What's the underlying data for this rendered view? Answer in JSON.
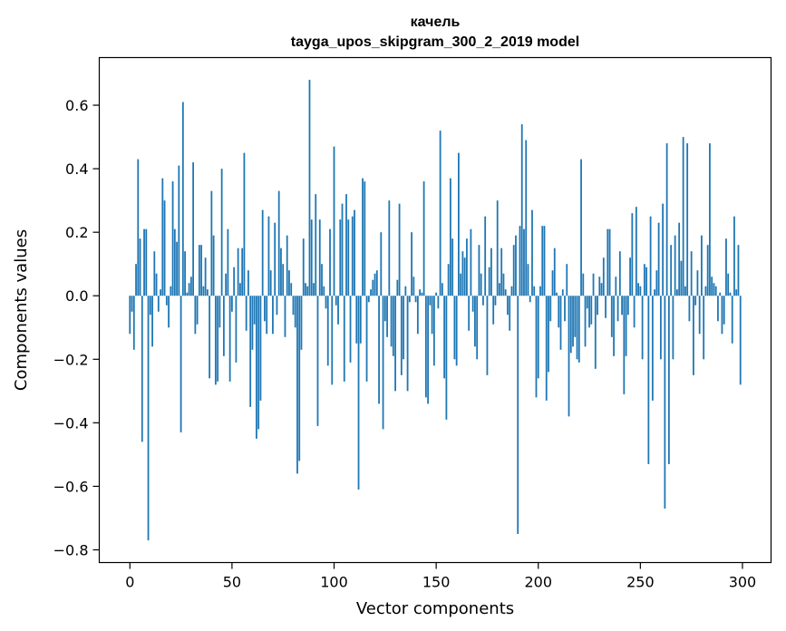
{
  "chart_data": {
    "type": "bar",
    "title": "качель",
    "subtitle": "tayga_upos_skipgram_300_2_2019 model",
    "xlabel": "Vector components",
    "ylabel": "Components values",
    "xlim": [
      -15,
      314
    ],
    "ylim": [
      -0.84,
      0.75
    ],
    "xticks": [
      0,
      50,
      100,
      150,
      200,
      250,
      300
    ],
    "xtick_labels": [
      "0",
      "50",
      "100",
      "150",
      "200",
      "250",
      "300"
    ],
    "yticks": [
      -0.8,
      -0.6,
      -0.4,
      -0.2,
      0.0,
      0.2,
      0.4,
      0.6
    ],
    "ytick_labels": [
      "−0.8",
      "−0.6",
      "−0.4",
      "−0.2",
      "0.0",
      "0.2",
      "0.4",
      "0.6"
    ],
    "grid": false,
    "bar_color": "#1f77b4",
    "series": [
      {
        "values": [
          -0.12,
          -0.05,
          -0.17,
          0.1,
          0.43,
          0.18,
          -0.46,
          0.21,
          0.21,
          -0.77,
          -0.06,
          -0.16,
          0.14,
          0.07,
          -0.05,
          0.02,
          0.37,
          0.3,
          -0.03,
          -0.1,
          0.03,
          0.36,
          0.21,
          0.17,
          0.41,
          -0.43,
          0.61,
          0.14,
          0.01,
          0.04,
          0.06,
          0.42,
          -0.12,
          -0.09,
          0.16,
          0.16,
          0.03,
          0.12,
          0.02,
          -0.26,
          0.33,
          0.19,
          -0.28,
          -0.27,
          -0.1,
          0.4,
          -0.19,
          0.07,
          0.21,
          -0.27,
          -0.05,
          0.09,
          -0.21,
          0.15,
          0.04,
          0.15,
          0.45,
          -0.11,
          0.08,
          -0.35,
          -0.17,
          -0.09,
          -0.45,
          -0.42,
          -0.33,
          0.27,
          -0.08,
          -0.12,
          0.25,
          0.08,
          -0.12,
          0.23,
          -0.06,
          0.33,
          0.15,
          0.1,
          -0.13,
          0.19,
          0.08,
          0.04,
          -0.06,
          -0.1,
          -0.56,
          -0.52,
          -0.17,
          0.18,
          0.04,
          0.03,
          0.68,
          0.24,
          0.04,
          0.32,
          -0.41,
          0.24,
          0.1,
          0.03,
          -0.04,
          -0.22,
          0.21,
          -0.28,
          0.47,
          -0.03,
          -0.09,
          0.24,
          0.29,
          -0.27,
          0.32,
          0.24,
          -0.21,
          0.25,
          0.27,
          -0.15,
          -0.61,
          -0.15,
          0.37,
          0.36,
          -0.27,
          -0.02,
          0.02,
          0.05,
          0.07,
          0.08,
          -0.34,
          0.2,
          -0.42,
          -0.08,
          -0.13,
          0.3,
          -0.16,
          -0.19,
          -0.3,
          0.05,
          0.29,
          -0.25,
          -0.2,
          0.03,
          -0.3,
          -0.02,
          0.2,
          0.06,
          -0.02,
          -0.12,
          0.02,
          0.01,
          0.36,
          -0.32,
          -0.34,
          -0.03,
          -0.12,
          -0.22,
          0.01,
          -0.04,
          0.52,
          0.04,
          -0.26,
          -0.39,
          0.1,
          0.37,
          0.18,
          -0.2,
          -0.22,
          0.45,
          0.07,
          0.14,
          0.12,
          0.18,
          -0.11,
          0.21,
          -0.05,
          -0.16,
          -0.2,
          0.16,
          0.07,
          -0.03,
          0.25,
          -0.25,
          0.09,
          0.15,
          -0.09,
          -0.03,
          0.3,
          0.04,
          0.15,
          0.07,
          0.02,
          -0.06,
          -0.11,
          0.03,
          0.16,
          0.19,
          -0.75,
          0.22,
          0.54,
          0.21,
          0.49,
          0.1,
          -0.02,
          0.27,
          0.03,
          -0.32,
          -0.26,
          0.03,
          0.22,
          0.22,
          -0.33,
          -0.24,
          -0.08,
          0.08,
          0.15,
          0.01,
          -0.1,
          -0.17,
          0.02,
          -0.08,
          0.1,
          -0.38,
          -0.18,
          -0.16,
          -0.13,
          -0.2,
          -0.21,
          0.43,
          0.07,
          -0.16,
          -0.04,
          -0.1,
          -0.09,
          0.07,
          -0.23,
          -0.06,
          0.06,
          0.04,
          0.12,
          -0.07,
          0.21,
          0.21,
          -0.13,
          -0.19,
          0.06,
          -0.08,
          0.14,
          -0.06,
          -0.31,
          -0.19,
          -0.06,
          0.12,
          0.26,
          -0.1,
          0.28,
          0.04,
          0.03,
          -0.2,
          0.1,
          0.09,
          -0.53,
          0.25,
          -0.33,
          0.02,
          0.08,
          0.23,
          -0.2,
          0.29,
          -0.67,
          0.48,
          -0.53,
          0.16,
          -0.2,
          0.19,
          0.02,
          0.23,
          0.11,
          0.5,
          0.03,
          0.48,
          -0.08,
          0.14,
          -0.25,
          -0.03,
          0.08,
          -0.12,
          0.19,
          -0.2,
          0.03,
          0.16,
          0.48,
          0.06,
          0.04,
          0.03,
          -0.08,
          0.01,
          -0.12,
          -0.09,
          0.18,
          0.07,
          0.01,
          -0.15,
          0.25,
          0.02,
          0.16,
          -0.28
        ]
      }
    ]
  }
}
